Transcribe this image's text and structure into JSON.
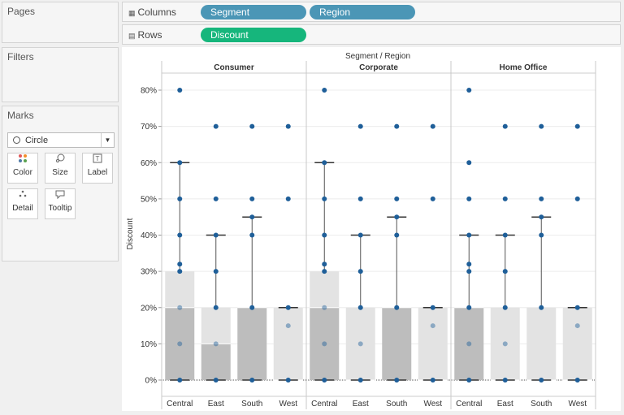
{
  "pages": {
    "title": "Pages"
  },
  "filters": {
    "title": "Filters"
  },
  "marks": {
    "title": "Marks",
    "mark_type": "Circle",
    "buttons": [
      {
        "label": "Color",
        "icon": "color-dots-icon"
      },
      {
        "label": "Size",
        "icon": "size-icon"
      },
      {
        "label": "Label",
        "icon": "label-icon"
      },
      {
        "label": "Detail",
        "icon": "detail-icon"
      },
      {
        "label": "Tooltip",
        "icon": "tooltip-icon"
      }
    ]
  },
  "columns": {
    "label": "Columns",
    "pills": [
      "Segment",
      "Region"
    ],
    "pill_color": "#4b96b6"
  },
  "rows": {
    "label": "Rows",
    "pills": [
      "Discount"
    ],
    "pill_color": "#16b67c"
  },
  "chart_data": {
    "type": "scatter",
    "header_title": "Segment  /  Region",
    "ylabel": "Discount",
    "ylim": [
      0,
      0.8
    ],
    "yticks": [
      "0%",
      "10%",
      "20%",
      "30%",
      "40%",
      "50%",
      "60%",
      "70%",
      "80%"
    ],
    "segments": [
      "Consumer",
      "Corporate",
      "Home Office"
    ],
    "regions": [
      "Central",
      "East",
      "South",
      "West"
    ],
    "point_color": "#1f5f99",
    "panels": [
      {
        "segment": "Consumer",
        "region": "Central",
        "points": [
          0,
          0.1,
          0.2,
          0.3,
          0.32,
          0.4,
          0.5,
          0.6,
          0.8
        ],
        "q1": 0,
        "median": 0.2,
        "q3": 0.3,
        "whisker_low": 0,
        "whisker_high": 0.6
      },
      {
        "segment": "Consumer",
        "region": "East",
        "points": [
          0,
          0.1,
          0.2,
          0.3,
          0.4,
          0.5,
          0.7
        ],
        "q1": 0,
        "median": 0.1,
        "q3": 0.2,
        "whisker_low": 0,
        "whisker_high": 0.4
      },
      {
        "segment": "Consumer",
        "region": "South",
        "points": [
          0,
          0.2,
          0.4,
          0.45,
          0.5,
          0.7
        ],
        "q1": 0,
        "median": 0.2,
        "q3": 0.2,
        "whisker_low": 0,
        "whisker_high": 0.45
      },
      {
        "segment": "Consumer",
        "region": "West",
        "points": [
          0,
          0.15,
          0.2,
          0.5,
          0.7
        ],
        "q1": 0,
        "median": 0,
        "q3": 0.2,
        "whisker_low": 0,
        "whisker_high": 0.2
      },
      {
        "segment": "Corporate",
        "region": "Central",
        "points": [
          0,
          0.1,
          0.2,
          0.3,
          0.32,
          0.4,
          0.5,
          0.6,
          0.8
        ],
        "q1": 0,
        "median": 0.2,
        "q3": 0.3,
        "whisker_low": 0,
        "whisker_high": 0.6
      },
      {
        "segment": "Corporate",
        "region": "East",
        "points": [
          0,
          0.1,
          0.2,
          0.3,
          0.4,
          0.5,
          0.7
        ],
        "q1": 0,
        "median": 0,
        "q3": 0.2,
        "whisker_low": 0,
        "whisker_high": 0.4
      },
      {
        "segment": "Corporate",
        "region": "South",
        "points": [
          0,
          0.2,
          0.4,
          0.45,
          0.5,
          0.7
        ],
        "q1": 0,
        "median": 0.2,
        "q3": 0.2,
        "whisker_low": 0,
        "whisker_high": 0.45
      },
      {
        "segment": "Corporate",
        "region": "West",
        "points": [
          0,
          0.15,
          0.2,
          0.5,
          0.7
        ],
        "q1": 0,
        "median": 0,
        "q3": 0.2,
        "whisker_low": 0,
        "whisker_high": 0.2
      },
      {
        "segment": "Home Office",
        "region": "Central",
        "points": [
          0,
          0.1,
          0.2,
          0.3,
          0.32,
          0.4,
          0.5,
          0.6,
          0.8
        ],
        "q1": 0,
        "median": 0.2,
        "q3": 0.2,
        "whisker_low": 0,
        "whisker_high": 0.4
      },
      {
        "segment": "Home Office",
        "region": "East",
        "points": [
          0,
          0.1,
          0.2,
          0.3,
          0.4,
          0.5,
          0.7
        ],
        "q1": 0,
        "median": 0,
        "q3": 0.2,
        "whisker_low": 0,
        "whisker_high": 0.4
      },
      {
        "segment": "Home Office",
        "region": "South",
        "points": [
          0,
          0.2,
          0.4,
          0.45,
          0.5,
          0.7
        ],
        "q1": 0,
        "median": 0,
        "q3": 0.2,
        "whisker_low": 0,
        "whisker_high": 0.45
      },
      {
        "segment": "Home Office",
        "region": "West",
        "points": [
          0,
          0.15,
          0.2,
          0.5,
          0.7
        ],
        "q1": 0,
        "median": 0,
        "q3": 0.2,
        "whisker_low": 0,
        "whisker_high": 0.2
      }
    ]
  }
}
